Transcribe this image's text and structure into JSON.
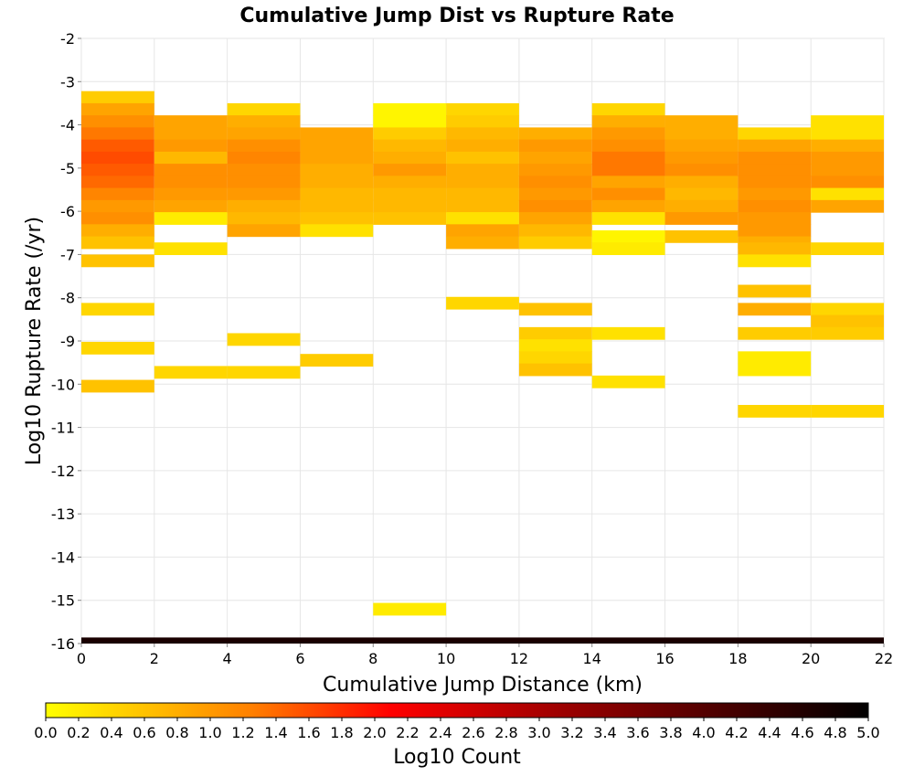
{
  "chart_data": {
    "type": "heatmap",
    "title": "Cumulative Jump Dist vs Rupture Rate",
    "xlabel": "Cumulative Jump Distance (km)",
    "ylabel": "Log10 Rupture Rate (/yr)",
    "xlim": [
      0,
      22
    ],
    "ylim": [
      -16,
      -2
    ],
    "x_ticks": [
      "0",
      "2",
      "4",
      "6",
      "8",
      "10",
      "12",
      "14",
      "16",
      "18",
      "20",
      "22"
    ],
    "y_ticks": [
      "-2",
      "-3",
      "-4",
      "-5",
      "-6",
      "-7",
      "-8",
      "-9",
      "-10",
      "-11",
      "-12",
      "-13",
      "-14",
      "-15",
      "-16"
    ],
    "x_bin_width": 2,
    "y_bin_height": 0.28,
    "grid": true,
    "colorbar": {
      "label": "Log10 Count",
      "range": [
        0,
        5
      ],
      "ticks": [
        "0.0",
        "0.2",
        "0.4",
        "0.6",
        "0.8",
        "1.0",
        "1.2",
        "1.4",
        "1.6",
        "1.8",
        "2.0",
        "2.2",
        "2.4",
        "2.6",
        "2.8",
        "3.0",
        "3.2",
        "3.4",
        "3.6",
        "3.8",
        "4.0",
        "4.2",
        "4.4",
        "4.6",
        "4.8",
        "5.0"
      ],
      "colors": [
        "#ffff00",
        "#ff8000",
        "#ff0000",
        "#a00000",
        "#000000"
      ]
    },
    "cells": [
      {
        "x": 0,
        "y": -3.36,
        "v": 0.5
      },
      {
        "x": 0,
        "y": -3.64,
        "v": 0.9
      },
      {
        "x": 0,
        "y": -3.92,
        "v": 1.1
      },
      {
        "x": 0,
        "y": -4.2,
        "v": 1.3
      },
      {
        "x": 0,
        "y": -4.48,
        "v": 1.5
      },
      {
        "x": 0,
        "y": -4.76,
        "v": 1.6
      },
      {
        "x": 0,
        "y": -5.04,
        "v": 1.5
      },
      {
        "x": 0,
        "y": -5.32,
        "v": 1.4
      },
      {
        "x": 0,
        "y": -5.6,
        "v": 1.2
      },
      {
        "x": 0,
        "y": -5.88,
        "v": 1.0
      },
      {
        "x": 0,
        "y": -6.16,
        "v": 1.1
      },
      {
        "x": 0,
        "y": -6.44,
        "v": 0.8
      },
      {
        "x": 0,
        "y": -6.72,
        "v": 0.6
      },
      {
        "x": 0,
        "y": -7.14,
        "v": 0.6
      },
      {
        "x": 0,
        "y": -8.26,
        "v": 0.4
      },
      {
        "x": 0,
        "y": -9.16,
        "v": 0.4
      },
      {
        "x": 0,
        "y": -10.04,
        "v": 0.6
      },
      {
        "x": 2,
        "y": -3.92,
        "v": 0.9
      },
      {
        "x": 2,
        "y": -4.2,
        "v": 0.9
      },
      {
        "x": 2,
        "y": -4.48,
        "v": 1.0
      },
      {
        "x": 2,
        "y": -4.76,
        "v": 0.7
      },
      {
        "x": 2,
        "y": -5.04,
        "v": 1.1
      },
      {
        "x": 2,
        "y": -5.32,
        "v": 1.1
      },
      {
        "x": 2,
        "y": -5.6,
        "v": 1.0
      },
      {
        "x": 2,
        "y": -5.88,
        "v": 0.9
      },
      {
        "x": 2,
        "y": -6.16,
        "v": 0.2
      },
      {
        "x": 2,
        "y": -6.86,
        "v": 0.3
      },
      {
        "x": 2,
        "y": -9.72,
        "v": 0.4
      },
      {
        "x": 4,
        "y": -3.64,
        "v": 0.4
      },
      {
        "x": 4,
        "y": -3.92,
        "v": 0.8
      },
      {
        "x": 4,
        "y": -4.2,
        "v": 0.9
      },
      {
        "x": 4,
        "y": -4.48,
        "v": 1.1
      },
      {
        "x": 4,
        "y": -4.76,
        "v": 1.2
      },
      {
        "x": 4,
        "y": -5.04,
        "v": 1.1
      },
      {
        "x": 4,
        "y": -5.32,
        "v": 1.1
      },
      {
        "x": 4,
        "y": -5.6,
        "v": 1.0
      },
      {
        "x": 4,
        "y": -5.88,
        "v": 0.8
      },
      {
        "x": 4,
        "y": -6.16,
        "v": 0.7
      },
      {
        "x": 4,
        "y": -6.44,
        "v": 0.9
      },
      {
        "x": 4,
        "y": -8.96,
        "v": 0.4
      },
      {
        "x": 4,
        "y": -9.72,
        "v": 0.4
      },
      {
        "x": 6,
        "y": -4.2,
        "v": 0.9
      },
      {
        "x": 6,
        "y": -4.48,
        "v": 0.9
      },
      {
        "x": 6,
        "y": -4.76,
        "v": 0.9
      },
      {
        "x": 6,
        "y": -5.04,
        "v": 0.8
      },
      {
        "x": 6,
        "y": -5.32,
        "v": 0.8
      },
      {
        "x": 6,
        "y": -5.6,
        "v": 0.7
      },
      {
        "x": 6,
        "y": -5.88,
        "v": 0.7
      },
      {
        "x": 6,
        "y": -6.16,
        "v": 0.6
      },
      {
        "x": 6,
        "y": -6.44,
        "v": 0.3
      },
      {
        "x": 6,
        "y": -9.44,
        "v": 0.5
      },
      {
        "x": 8,
        "y": -3.64,
        "v": 0.1
      },
      {
        "x": 8,
        "y": -3.92,
        "v": 0.1
      },
      {
        "x": 8,
        "y": -4.2,
        "v": 0.5
      },
      {
        "x": 8,
        "y": -4.48,
        "v": 0.7
      },
      {
        "x": 8,
        "y": -4.76,
        "v": 0.8
      },
      {
        "x": 8,
        "y": -5.04,
        "v": 1.0
      },
      {
        "x": 8,
        "y": -5.32,
        "v": 0.8
      },
      {
        "x": 8,
        "y": -5.6,
        "v": 0.7
      },
      {
        "x": 8,
        "y": -5.88,
        "v": 0.7
      },
      {
        "x": 8,
        "y": -6.16,
        "v": 0.6
      },
      {
        "x": 8,
        "y": -15.2,
        "v": 0.2
      },
      {
        "x": 10,
        "y": -3.64,
        "v": 0.4
      },
      {
        "x": 10,
        "y": -3.92,
        "v": 0.5
      },
      {
        "x": 10,
        "y": -4.2,
        "v": 0.7
      },
      {
        "x": 10,
        "y": -4.48,
        "v": 0.8
      },
      {
        "x": 10,
        "y": -4.76,
        "v": 0.6
      },
      {
        "x": 10,
        "y": -5.04,
        "v": 0.8
      },
      {
        "x": 10,
        "y": -5.32,
        "v": 0.8
      },
      {
        "x": 10,
        "y": -5.6,
        "v": 0.7
      },
      {
        "x": 10,
        "y": -5.88,
        "v": 0.7
      },
      {
        "x": 10,
        "y": -6.16,
        "v": 0.3
      },
      {
        "x": 10,
        "y": -6.44,
        "v": 0.9
      },
      {
        "x": 10,
        "y": -6.72,
        "v": 0.8
      },
      {
        "x": 10,
        "y": -8.12,
        "v": 0.4
      },
      {
        "x": 12,
        "y": -4.2,
        "v": 0.8
      },
      {
        "x": 12,
        "y": -4.48,
        "v": 1.0
      },
      {
        "x": 12,
        "y": -4.76,
        "v": 0.9
      },
      {
        "x": 12,
        "y": -5.04,
        "v": 1.0
      },
      {
        "x": 12,
        "y": -5.32,
        "v": 1.1
      },
      {
        "x": 12,
        "y": -5.6,
        "v": 1.0
      },
      {
        "x": 12,
        "y": -5.88,
        "v": 1.1
      },
      {
        "x": 12,
        "y": -6.16,
        "v": 0.9
      },
      {
        "x": 12,
        "y": -6.44,
        "v": 0.7
      },
      {
        "x": 12,
        "y": -6.72,
        "v": 0.5
      },
      {
        "x": 12,
        "y": -8.26,
        "v": 0.6
      },
      {
        "x": 12,
        "y": -8.82,
        "v": 0.5
      },
      {
        "x": 12,
        "y": -9.1,
        "v": 0.3
      },
      {
        "x": 12,
        "y": -9.38,
        "v": 0.4
      },
      {
        "x": 12,
        "y": -9.66,
        "v": 0.6
      },
      {
        "x": 14,
        "y": -3.64,
        "v": 0.4
      },
      {
        "x": 14,
        "y": -3.92,
        "v": 0.8
      },
      {
        "x": 14,
        "y": -4.2,
        "v": 1.0
      },
      {
        "x": 14,
        "y": -4.48,
        "v": 1.1
      },
      {
        "x": 14,
        "y": -4.76,
        "v": 1.3
      },
      {
        "x": 14,
        "y": -5.04,
        "v": 1.3
      },
      {
        "x": 14,
        "y": -5.32,
        "v": 0.9
      },
      {
        "x": 14,
        "y": -5.6,
        "v": 1.1
      },
      {
        "x": 14,
        "y": -5.88,
        "v": 0.9
      },
      {
        "x": 14,
        "y": -6.16,
        "v": 0.3
      },
      {
        "x": 14,
        "y": -6.58,
        "v": 0.1
      },
      {
        "x": 14,
        "y": -6.86,
        "v": 0.2
      },
      {
        "x": 14,
        "y": -8.82,
        "v": 0.3
      },
      {
        "x": 14,
        "y": -9.94,
        "v": 0.3
      },
      {
        "x": 16,
        "y": -3.92,
        "v": 0.8
      },
      {
        "x": 16,
        "y": -4.2,
        "v": 0.8
      },
      {
        "x": 16,
        "y": -4.48,
        "v": 0.9
      },
      {
        "x": 16,
        "y": -4.76,
        "v": 1.0
      },
      {
        "x": 16,
        "y": -5.04,
        "v": 1.1
      },
      {
        "x": 16,
        "y": -5.32,
        "v": 0.8
      },
      {
        "x": 16,
        "y": -5.6,
        "v": 0.7
      },
      {
        "x": 16,
        "y": -5.88,
        "v": 0.8
      },
      {
        "x": 16,
        "y": -6.16,
        "v": 1.0
      },
      {
        "x": 16,
        "y": -6.58,
        "v": 0.6
      },
      {
        "x": 18,
        "y": -4.2,
        "v": 0.4
      },
      {
        "x": 18,
        "y": -4.48,
        "v": 0.9
      },
      {
        "x": 18,
        "y": -4.76,
        "v": 1.1
      },
      {
        "x": 18,
        "y": -5.04,
        "v": 1.1
      },
      {
        "x": 18,
        "y": -5.32,
        "v": 1.1
      },
      {
        "x": 18,
        "y": -5.6,
        "v": 1.0
      },
      {
        "x": 18,
        "y": -5.88,
        "v": 1.1
      },
      {
        "x": 18,
        "y": -6.16,
        "v": 1.0
      },
      {
        "x": 18,
        "y": -6.44,
        "v": 1.0
      },
      {
        "x": 18,
        "y": -6.72,
        "v": 0.8
      },
      {
        "x": 18,
        "y": -6.86,
        "v": 0.7
      },
      {
        "x": 18,
        "y": -7.14,
        "v": 0.3
      },
      {
        "x": 18,
        "y": -7.84,
        "v": 0.6
      },
      {
        "x": 18,
        "y": -8.26,
        "v": 0.8
      },
      {
        "x": 18,
        "y": -8.82,
        "v": 0.5
      },
      {
        "x": 18,
        "y": -9.38,
        "v": 0.2
      },
      {
        "x": 18,
        "y": -9.66,
        "v": 0.2
      },
      {
        "x": 18,
        "y": -10.62,
        "v": 0.4
      },
      {
        "x": 20,
        "y": -3.92,
        "v": 0.3
      },
      {
        "x": 20,
        "y": -4.2,
        "v": 0.3
      },
      {
        "x": 20,
        "y": -4.48,
        "v": 0.8
      },
      {
        "x": 20,
        "y": -4.76,
        "v": 1.0
      },
      {
        "x": 20,
        "y": -5.04,
        "v": 1.0
      },
      {
        "x": 20,
        "y": -5.32,
        "v": 1.1
      },
      {
        "x": 20,
        "y": -5.6,
        "v": 0.3
      },
      {
        "x": 20,
        "y": -5.88,
        "v": 0.9
      },
      {
        "x": 20,
        "y": -6.86,
        "v": 0.4
      },
      {
        "x": 20,
        "y": -8.26,
        "v": 0.4
      },
      {
        "x": 20,
        "y": -8.54,
        "v": 0.6
      },
      {
        "x": 20,
        "y": -8.82,
        "v": 0.5
      },
      {
        "x": 20,
        "y": -10.62,
        "v": 0.4
      }
    ],
    "bottom_row": {
      "y": -15.93,
      "v": 4.7
    }
  }
}
